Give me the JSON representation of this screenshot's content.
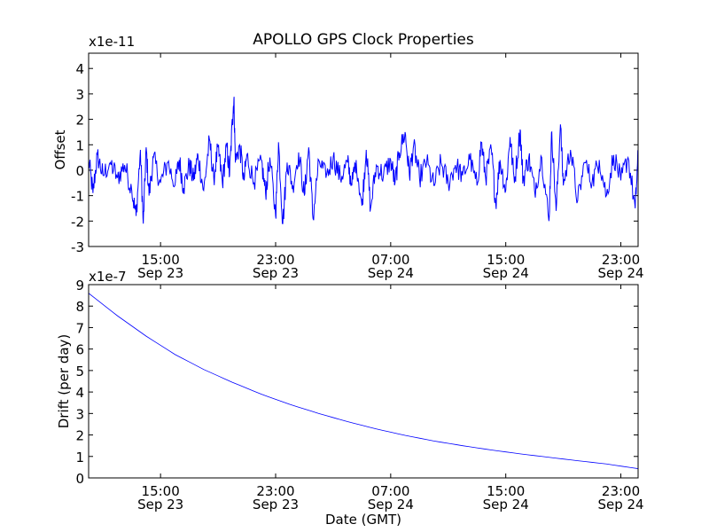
{
  "title": "APOLLO GPS Clock Properties",
  "colors": {
    "line": "#0000ff",
    "axis": "#000000",
    "background": "#ffffff"
  },
  "x_ticks": [
    {
      "time": "15:00",
      "date": "Sep 23",
      "hours": 5
    },
    {
      "time": "23:00",
      "date": "Sep 23",
      "hours": 13
    },
    {
      "time": "07:00",
      "date": "Sep 24",
      "hours": 21
    },
    {
      "time": "15:00",
      "date": "Sep 24",
      "hours": 29
    },
    {
      "time": "23:00",
      "date": "Sep 24",
      "hours": 37
    }
  ],
  "chart_data": [
    {
      "type": "line",
      "ylabel": "Offset",
      "multiplier": "x1e-11",
      "ylim": [
        -3,
        4.6
      ],
      "yticks": [
        "-3",
        "-2",
        "-1",
        "0",
        "1",
        "2",
        "3",
        "4"
      ],
      "x_range_hours": [
        0,
        38.2
      ],
      "series": [
        {
          "name": "offset",
          "points": [
            [
              0.0,
              0.4
            ],
            [
              0.3,
              -0.9
            ],
            [
              0.6,
              0.6
            ],
            [
              1.0,
              -0.2
            ],
            [
              1.5,
              0.3
            ],
            [
              2.0,
              -0.3
            ],
            [
              2.5,
              0.2
            ],
            [
              3.0,
              -0.8
            ],
            [
              3.3,
              -1.8
            ],
            [
              3.6,
              0.8
            ],
            [
              3.8,
              -2.1
            ],
            [
              4.0,
              0.9
            ],
            [
              4.2,
              -1.0
            ],
            [
              4.5,
              0.5
            ],
            [
              5.0,
              -0.5
            ],
            [
              5.5,
              0.3
            ],
            [
              6.0,
              -0.6
            ],
            [
              6.3,
              0.4
            ],
            [
              6.6,
              -0.7
            ],
            [
              7.0,
              0.2
            ],
            [
              7.3,
              -0.4
            ],
            [
              7.6,
              0.6
            ],
            [
              8.0,
              -0.8
            ],
            [
              8.4,
              1.2
            ],
            [
              8.7,
              -0.3
            ],
            [
              9.0,
              0.9
            ],
            [
              9.3,
              -0.5
            ],
            [
              9.6,
              1.0
            ],
            [
              9.8,
              -0.2
            ],
            [
              10.0,
              2.0
            ],
            [
              10.1,
              2.8
            ],
            [
              10.2,
              0.3
            ],
            [
              10.5,
              1.0
            ],
            [
              10.8,
              -0.4
            ],
            [
              11.0,
              0.6
            ],
            [
              11.5,
              -0.5
            ],
            [
              12.0,
              0.4
            ],
            [
              12.3,
              -0.9
            ],
            [
              12.6,
              0.5
            ],
            [
              13.0,
              -1.8
            ],
            [
              13.2,
              1.1
            ],
            [
              13.5,
              -2.1
            ],
            [
              13.8,
              0.3
            ],
            [
              14.2,
              -0.6
            ],
            [
              14.6,
              0.7
            ],
            [
              15.0,
              -1.0
            ],
            [
              15.3,
              0.9
            ],
            [
              15.6,
              -1.9
            ],
            [
              16.0,
              0.4
            ],
            [
              16.5,
              -0.3
            ],
            [
              17.0,
              0.5
            ],
            [
              17.5,
              -0.3
            ],
            [
              18.0,
              0.3
            ],
            [
              18.3,
              -0.6
            ],
            [
              18.6,
              0.4
            ],
            [
              19.0,
              -1.4
            ],
            [
              19.3,
              0.8
            ],
            [
              19.6,
              -1.5
            ],
            [
              20.0,
              0.2
            ],
            [
              20.5,
              -0.2
            ],
            [
              21.0,
              0.4
            ],
            [
              21.3,
              -0.5
            ],
            [
              21.6,
              0.7
            ],
            [
              22.0,
              1.5
            ],
            [
              22.3,
              -0.2
            ],
            [
              22.6,
              1.0
            ],
            [
              23.0,
              -0.3
            ],
            [
              23.5,
              0.3
            ],
            [
              24.0,
              -0.6
            ],
            [
              24.5,
              0.3
            ],
            [
              25.0,
              -0.5
            ],
            [
              25.5,
              0.2
            ],
            [
              26.0,
              -0.2
            ],
            [
              26.5,
              0.4
            ],
            [
              27.0,
              -0.6
            ],
            [
              27.3,
              1.1
            ],
            [
              27.6,
              -0.3
            ],
            [
              28.0,
              0.8
            ],
            [
              28.3,
              -1.3
            ],
            [
              28.6,
              0.4
            ],
            [
              29.0,
              -0.8
            ],
            [
              29.3,
              1.3
            ],
            [
              29.6,
              -0.5
            ],
            [
              30.0,
              1.6
            ],
            [
              30.2,
              -0.4
            ],
            [
              30.6,
              0.5
            ],
            [
              31.0,
              -0.8
            ],
            [
              31.5,
              0.5
            ],
            [
              32.0,
              -2.0
            ],
            [
              32.2,
              1.5
            ],
            [
              32.5,
              -1.6
            ],
            [
              32.8,
              1.8
            ],
            [
              33.0,
              -0.6
            ],
            [
              33.5,
              0.8
            ],
            [
              34.0,
              -1.2
            ],
            [
              34.5,
              0.3
            ],
            [
              35.0,
              -0.5
            ],
            [
              35.5,
              0.4
            ],
            [
              36.0,
              -1.0
            ],
            [
              36.5,
              0.6
            ],
            [
              37.0,
              -0.4
            ],
            [
              37.5,
              0.5
            ],
            [
              38.0,
              -1.5
            ],
            [
              38.2,
              0.6
            ]
          ]
        }
      ]
    },
    {
      "type": "line",
      "ylabel": "Drift (per day)",
      "xlabel": "Date (GMT)",
      "multiplier": "x1e-7",
      "ylim": [
        0,
        9
      ],
      "yticks": [
        "0",
        "1",
        "2",
        "3",
        "4",
        "5",
        "6",
        "7",
        "8",
        "9"
      ],
      "x_range_hours": [
        0,
        38.2
      ],
      "series": [
        {
          "name": "drift",
          "points": [
            [
              0,
              8.6
            ],
            [
              2,
              7.55
            ],
            [
              4,
              6.6
            ],
            [
              6,
              5.75
            ],
            [
              8,
              5.05
            ],
            [
              10,
              4.45
            ],
            [
              12,
              3.9
            ],
            [
              14,
              3.42
            ],
            [
              16,
              3.0
            ],
            [
              18,
              2.62
            ],
            [
              20,
              2.28
            ],
            [
              22,
              1.98
            ],
            [
              24,
              1.72
            ],
            [
              26,
              1.5
            ],
            [
              28,
              1.3
            ],
            [
              30,
              1.12
            ],
            [
              32,
              0.96
            ],
            [
              34,
              0.8
            ],
            [
              36,
              0.65
            ],
            [
              38.2,
              0.43
            ]
          ]
        }
      ]
    }
  ]
}
